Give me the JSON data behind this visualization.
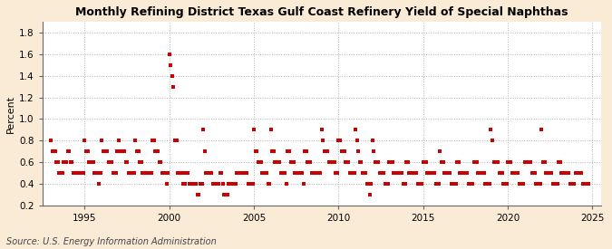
{
  "title": "Monthly Refining District Texas Gulf Coast Refinery Yield of Special Naphthas",
  "ylabel": "Percent",
  "source": "Source: U.S. Energy Information Administration",
  "xlim": [
    1992.5,
    2025.5
  ],
  "ylim": [
    0.2,
    1.9
  ],
  "yticks": [
    0.2,
    0.4,
    0.6,
    0.8,
    1.0,
    1.2,
    1.4,
    1.6,
    1.8
  ],
  "xticks": [
    1995,
    2000,
    2005,
    2010,
    2015,
    2020,
    2025
  ],
  "bg_color": "#faebd7",
  "plot_bg_color": "#ffffff",
  "marker_color": "#cc0000",
  "marker_size": 6,
  "data": [
    [
      1993.0,
      0.8
    ],
    [
      1993.083,
      0.7
    ],
    [
      1993.167,
      0.7
    ],
    [
      1993.25,
      0.7
    ],
    [
      1993.333,
      0.6
    ],
    [
      1993.417,
      0.6
    ],
    [
      1993.5,
      0.5
    ],
    [
      1993.583,
      0.5
    ],
    [
      1993.667,
      0.5
    ],
    [
      1993.75,
      0.6
    ],
    [
      1993.833,
      0.6
    ],
    [
      1993.917,
      0.6
    ],
    [
      1994.0,
      0.7
    ],
    [
      1994.083,
      0.7
    ],
    [
      1994.167,
      0.6
    ],
    [
      1994.25,
      0.6
    ],
    [
      1994.333,
      0.5
    ],
    [
      1994.417,
      0.5
    ],
    [
      1994.5,
      0.5
    ],
    [
      1994.583,
      0.5
    ],
    [
      1994.667,
      0.5
    ],
    [
      1994.75,
      0.5
    ],
    [
      1994.833,
      0.5
    ],
    [
      1994.917,
      0.5
    ],
    [
      1995.0,
      0.8
    ],
    [
      1995.083,
      0.7
    ],
    [
      1995.167,
      0.7
    ],
    [
      1995.25,
      0.6
    ],
    [
      1995.333,
      0.6
    ],
    [
      1995.417,
      0.6
    ],
    [
      1995.5,
      0.6
    ],
    [
      1995.583,
      0.5
    ],
    [
      1995.667,
      0.5
    ],
    [
      1995.75,
      0.5
    ],
    [
      1995.833,
      0.4
    ],
    [
      1995.917,
      0.5
    ],
    [
      1996.0,
      0.8
    ],
    [
      1996.083,
      0.7
    ],
    [
      1996.167,
      0.7
    ],
    [
      1996.25,
      0.7
    ],
    [
      1996.333,
      0.7
    ],
    [
      1996.417,
      0.6
    ],
    [
      1996.5,
      0.6
    ],
    [
      1996.583,
      0.6
    ],
    [
      1996.667,
      0.5
    ],
    [
      1996.75,
      0.5
    ],
    [
      1996.833,
      0.5
    ],
    [
      1996.917,
      0.7
    ],
    [
      1997.0,
      0.8
    ],
    [
      1997.083,
      0.7
    ],
    [
      1997.167,
      0.7
    ],
    [
      1997.25,
      0.7
    ],
    [
      1997.333,
      0.7
    ],
    [
      1997.417,
      0.6
    ],
    [
      1997.5,
      0.6
    ],
    [
      1997.583,
      0.5
    ],
    [
      1997.667,
      0.5
    ],
    [
      1997.75,
      0.5
    ],
    [
      1997.833,
      0.5
    ],
    [
      1997.917,
      0.5
    ],
    [
      1998.0,
      0.8
    ],
    [
      1998.083,
      0.7
    ],
    [
      1998.167,
      0.7
    ],
    [
      1998.25,
      0.6
    ],
    [
      1998.333,
      0.6
    ],
    [
      1998.417,
      0.5
    ],
    [
      1998.5,
      0.5
    ],
    [
      1998.583,
      0.5
    ],
    [
      1998.667,
      0.5
    ],
    [
      1998.75,
      0.5
    ],
    [
      1998.833,
      0.5
    ],
    [
      1998.917,
      0.5
    ],
    [
      1999.0,
      0.8
    ],
    [
      1999.083,
      0.8
    ],
    [
      1999.167,
      0.7
    ],
    [
      1999.25,
      0.7
    ],
    [
      1999.333,
      0.7
    ],
    [
      1999.417,
      0.6
    ],
    [
      1999.5,
      0.6
    ],
    [
      1999.583,
      0.5
    ],
    [
      1999.667,
      0.5
    ],
    [
      1999.75,
      0.5
    ],
    [
      1999.833,
      0.4
    ],
    [
      1999.917,
      0.5
    ],
    [
      2000.0,
      1.6
    ],
    [
      2000.083,
      1.5
    ],
    [
      2000.167,
      1.4
    ],
    [
      2000.25,
      1.3
    ],
    [
      2000.333,
      0.8
    ],
    [
      2000.417,
      0.8
    ],
    [
      2000.5,
      0.5
    ],
    [
      2000.583,
      0.5
    ],
    [
      2000.667,
      0.5
    ],
    [
      2000.75,
      0.5
    ],
    [
      2000.833,
      0.4
    ],
    [
      2000.917,
      0.4
    ],
    [
      2001.0,
      0.5
    ],
    [
      2001.083,
      0.5
    ],
    [
      2001.167,
      0.4
    ],
    [
      2001.25,
      0.4
    ],
    [
      2001.333,
      0.4
    ],
    [
      2001.417,
      0.4
    ],
    [
      2001.5,
      0.4
    ],
    [
      2001.583,
      0.4
    ],
    [
      2001.667,
      0.3
    ],
    [
      2001.75,
      0.3
    ],
    [
      2001.833,
      0.4
    ],
    [
      2001.917,
      0.4
    ],
    [
      2002.0,
      0.9
    ],
    [
      2002.083,
      0.7
    ],
    [
      2002.167,
      0.5
    ],
    [
      2002.25,
      0.5
    ],
    [
      2002.333,
      0.5
    ],
    [
      2002.417,
      0.5
    ],
    [
      2002.5,
      0.5
    ],
    [
      2002.583,
      0.4
    ],
    [
      2002.667,
      0.4
    ],
    [
      2002.75,
      0.4
    ],
    [
      2002.833,
      0.4
    ],
    [
      2002.917,
      0.4
    ],
    [
      2003.0,
      0.5
    ],
    [
      2003.083,
      0.5
    ],
    [
      2003.167,
      0.4
    ],
    [
      2003.25,
      0.3
    ],
    [
      2003.333,
      0.3
    ],
    [
      2003.417,
      0.3
    ],
    [
      2003.5,
      0.4
    ],
    [
      2003.583,
      0.4
    ],
    [
      2003.667,
      0.4
    ],
    [
      2003.75,
      0.4
    ],
    [
      2003.833,
      0.4
    ],
    [
      2003.917,
      0.4
    ],
    [
      2004.0,
      0.5
    ],
    [
      2004.083,
      0.5
    ],
    [
      2004.167,
      0.5
    ],
    [
      2004.25,
      0.5
    ],
    [
      2004.333,
      0.5
    ],
    [
      2004.417,
      0.5
    ],
    [
      2004.5,
      0.5
    ],
    [
      2004.583,
      0.5
    ],
    [
      2004.667,
      0.4
    ],
    [
      2004.75,
      0.4
    ],
    [
      2004.833,
      0.4
    ],
    [
      2004.917,
      0.4
    ],
    [
      2005.0,
      0.9
    ],
    [
      2005.083,
      0.7
    ],
    [
      2005.167,
      0.7
    ],
    [
      2005.25,
      0.6
    ],
    [
      2005.333,
      0.6
    ],
    [
      2005.417,
      0.6
    ],
    [
      2005.5,
      0.5
    ],
    [
      2005.583,
      0.5
    ],
    [
      2005.667,
      0.5
    ],
    [
      2005.75,
      0.5
    ],
    [
      2005.833,
      0.4
    ],
    [
      2005.917,
      0.4
    ],
    [
      2006.0,
      0.9
    ],
    [
      2006.083,
      0.7
    ],
    [
      2006.167,
      0.7
    ],
    [
      2006.25,
      0.6
    ],
    [
      2006.333,
      0.6
    ],
    [
      2006.417,
      0.6
    ],
    [
      2006.5,
      0.6
    ],
    [
      2006.583,
      0.5
    ],
    [
      2006.667,
      0.5
    ],
    [
      2006.75,
      0.5
    ],
    [
      2006.833,
      0.5
    ],
    [
      2006.917,
      0.4
    ],
    [
      2007.0,
      0.7
    ],
    [
      2007.083,
      0.7
    ],
    [
      2007.167,
      0.6
    ],
    [
      2007.25,
      0.6
    ],
    [
      2007.333,
      0.6
    ],
    [
      2007.417,
      0.5
    ],
    [
      2007.5,
      0.5
    ],
    [
      2007.583,
      0.5
    ],
    [
      2007.667,
      0.5
    ],
    [
      2007.75,
      0.5
    ],
    [
      2007.833,
      0.5
    ],
    [
      2007.917,
      0.4
    ],
    [
      2008.0,
      0.7
    ],
    [
      2008.083,
      0.7
    ],
    [
      2008.167,
      0.6
    ],
    [
      2008.25,
      0.6
    ],
    [
      2008.333,
      0.6
    ],
    [
      2008.417,
      0.5
    ],
    [
      2008.5,
      0.5
    ],
    [
      2008.583,
      0.5
    ],
    [
      2008.667,
      0.5
    ],
    [
      2008.75,
      0.5
    ],
    [
      2008.833,
      0.5
    ],
    [
      2008.917,
      0.5
    ],
    [
      2009.0,
      0.9
    ],
    [
      2009.083,
      0.8
    ],
    [
      2009.167,
      0.7
    ],
    [
      2009.25,
      0.7
    ],
    [
      2009.333,
      0.7
    ],
    [
      2009.417,
      0.6
    ],
    [
      2009.5,
      0.6
    ],
    [
      2009.583,
      0.6
    ],
    [
      2009.667,
      0.6
    ],
    [
      2009.75,
      0.6
    ],
    [
      2009.833,
      0.5
    ],
    [
      2009.917,
      0.5
    ],
    [
      2010.0,
      0.8
    ],
    [
      2010.083,
      0.8
    ],
    [
      2010.167,
      0.7
    ],
    [
      2010.25,
      0.7
    ],
    [
      2010.333,
      0.7
    ],
    [
      2010.417,
      0.6
    ],
    [
      2010.5,
      0.6
    ],
    [
      2010.583,
      0.6
    ],
    [
      2010.667,
      0.5
    ],
    [
      2010.75,
      0.5
    ],
    [
      2010.833,
      0.5
    ],
    [
      2010.917,
      0.5
    ],
    [
      2011.0,
      0.9
    ],
    [
      2011.083,
      0.8
    ],
    [
      2011.167,
      0.7
    ],
    [
      2011.25,
      0.6
    ],
    [
      2011.333,
      0.6
    ],
    [
      2011.417,
      0.5
    ],
    [
      2011.5,
      0.5
    ],
    [
      2011.583,
      0.5
    ],
    [
      2011.667,
      0.4
    ],
    [
      2011.75,
      0.4
    ],
    [
      2011.833,
      0.3
    ],
    [
      2011.917,
      0.4
    ],
    [
      2012.0,
      0.8
    ],
    [
      2012.083,
      0.7
    ],
    [
      2012.167,
      0.6
    ],
    [
      2012.25,
      0.6
    ],
    [
      2012.333,
      0.6
    ],
    [
      2012.417,
      0.5
    ],
    [
      2012.5,
      0.5
    ],
    [
      2012.583,
      0.5
    ],
    [
      2012.667,
      0.5
    ],
    [
      2012.75,
      0.4
    ],
    [
      2012.833,
      0.4
    ],
    [
      2012.917,
      0.4
    ],
    [
      2013.0,
      0.6
    ],
    [
      2013.083,
      0.6
    ],
    [
      2013.167,
      0.6
    ],
    [
      2013.25,
      0.5
    ],
    [
      2013.333,
      0.5
    ],
    [
      2013.417,
      0.5
    ],
    [
      2013.5,
      0.5
    ],
    [
      2013.583,
      0.5
    ],
    [
      2013.667,
      0.5
    ],
    [
      2013.75,
      0.5
    ],
    [
      2013.833,
      0.4
    ],
    [
      2013.917,
      0.4
    ],
    [
      2014.0,
      0.6
    ],
    [
      2014.083,
      0.6
    ],
    [
      2014.167,
      0.5
    ],
    [
      2014.25,
      0.5
    ],
    [
      2014.333,
      0.5
    ],
    [
      2014.417,
      0.5
    ],
    [
      2014.5,
      0.5
    ],
    [
      2014.583,
      0.5
    ],
    [
      2014.667,
      0.4
    ],
    [
      2014.75,
      0.4
    ],
    [
      2014.833,
      0.4
    ],
    [
      2014.917,
      0.4
    ],
    [
      2015.0,
      0.6
    ],
    [
      2015.083,
      0.6
    ],
    [
      2015.167,
      0.6
    ],
    [
      2015.25,
      0.5
    ],
    [
      2015.333,
      0.5
    ],
    [
      2015.417,
      0.5
    ],
    [
      2015.5,
      0.5
    ],
    [
      2015.583,
      0.5
    ],
    [
      2015.667,
      0.5
    ],
    [
      2015.75,
      0.4
    ],
    [
      2015.833,
      0.4
    ],
    [
      2015.917,
      0.4
    ],
    [
      2016.0,
      0.7
    ],
    [
      2016.083,
      0.6
    ],
    [
      2016.167,
      0.6
    ],
    [
      2016.25,
      0.5
    ],
    [
      2016.333,
      0.5
    ],
    [
      2016.417,
      0.5
    ],
    [
      2016.5,
      0.5
    ],
    [
      2016.583,
      0.5
    ],
    [
      2016.667,
      0.4
    ],
    [
      2016.75,
      0.4
    ],
    [
      2016.833,
      0.4
    ],
    [
      2016.917,
      0.4
    ],
    [
      2017.0,
      0.6
    ],
    [
      2017.083,
      0.6
    ],
    [
      2017.167,
      0.5
    ],
    [
      2017.25,
      0.5
    ],
    [
      2017.333,
      0.5
    ],
    [
      2017.417,
      0.5
    ],
    [
      2017.5,
      0.5
    ],
    [
      2017.583,
      0.5
    ],
    [
      2017.667,
      0.4
    ],
    [
      2017.75,
      0.4
    ],
    [
      2017.833,
      0.4
    ],
    [
      2017.917,
      0.4
    ],
    [
      2018.0,
      0.6
    ],
    [
      2018.083,
      0.6
    ],
    [
      2018.167,
      0.6
    ],
    [
      2018.25,
      0.5
    ],
    [
      2018.333,
      0.5
    ],
    [
      2018.417,
      0.5
    ],
    [
      2018.5,
      0.5
    ],
    [
      2018.583,
      0.5
    ],
    [
      2018.667,
      0.4
    ],
    [
      2018.75,
      0.4
    ],
    [
      2018.833,
      0.4
    ],
    [
      2018.917,
      0.4
    ],
    [
      2019.0,
      0.9
    ],
    [
      2019.083,
      0.8
    ],
    [
      2019.167,
      0.6
    ],
    [
      2019.25,
      0.6
    ],
    [
      2019.333,
      0.6
    ],
    [
      2019.417,
      0.6
    ],
    [
      2019.5,
      0.5
    ],
    [
      2019.583,
      0.5
    ],
    [
      2019.667,
      0.5
    ],
    [
      2019.75,
      0.4
    ],
    [
      2019.833,
      0.4
    ],
    [
      2019.917,
      0.4
    ],
    [
      2020.0,
      0.6
    ],
    [
      2020.083,
      0.6
    ],
    [
      2020.167,
      0.6
    ],
    [
      2020.25,
      0.5
    ],
    [
      2020.333,
      0.5
    ],
    [
      2020.417,
      0.5
    ],
    [
      2020.5,
      0.5
    ],
    [
      2020.583,
      0.5
    ],
    [
      2020.667,
      0.4
    ],
    [
      2020.75,
      0.4
    ],
    [
      2020.833,
      0.4
    ],
    [
      2020.917,
      0.4
    ],
    [
      2021.0,
      0.6
    ],
    [
      2021.083,
      0.6
    ],
    [
      2021.167,
      0.6
    ],
    [
      2021.25,
      0.6
    ],
    [
      2021.333,
      0.6
    ],
    [
      2021.417,
      0.5
    ],
    [
      2021.5,
      0.5
    ],
    [
      2021.583,
      0.5
    ],
    [
      2021.667,
      0.4
    ],
    [
      2021.75,
      0.4
    ],
    [
      2021.833,
      0.4
    ],
    [
      2021.917,
      0.4
    ],
    [
      2022.0,
      0.9
    ],
    [
      2022.083,
      0.6
    ],
    [
      2022.167,
      0.6
    ],
    [
      2022.25,
      0.5
    ],
    [
      2022.333,
      0.5
    ],
    [
      2022.417,
      0.5
    ],
    [
      2022.5,
      0.5
    ],
    [
      2022.583,
      0.5
    ],
    [
      2022.667,
      0.4
    ],
    [
      2022.75,
      0.4
    ],
    [
      2022.833,
      0.4
    ],
    [
      2022.917,
      0.4
    ],
    [
      2023.0,
      0.6
    ],
    [
      2023.083,
      0.6
    ],
    [
      2023.167,
      0.5
    ],
    [
      2023.25,
      0.5
    ],
    [
      2023.333,
      0.5
    ],
    [
      2023.417,
      0.5
    ],
    [
      2023.5,
      0.5
    ],
    [
      2023.583,
      0.5
    ],
    [
      2023.667,
      0.4
    ],
    [
      2023.75,
      0.4
    ],
    [
      2023.833,
      0.4
    ],
    [
      2023.917,
      0.4
    ],
    [
      2024.0,
      0.5
    ],
    [
      2024.083,
      0.5
    ],
    [
      2024.167,
      0.5
    ],
    [
      2024.25,
      0.5
    ],
    [
      2024.333,
      0.5
    ],
    [
      2024.417,
      0.4
    ],
    [
      2024.5,
      0.4
    ],
    [
      2024.667,
      0.4
    ],
    [
      2024.75,
      0.4
    ]
  ]
}
